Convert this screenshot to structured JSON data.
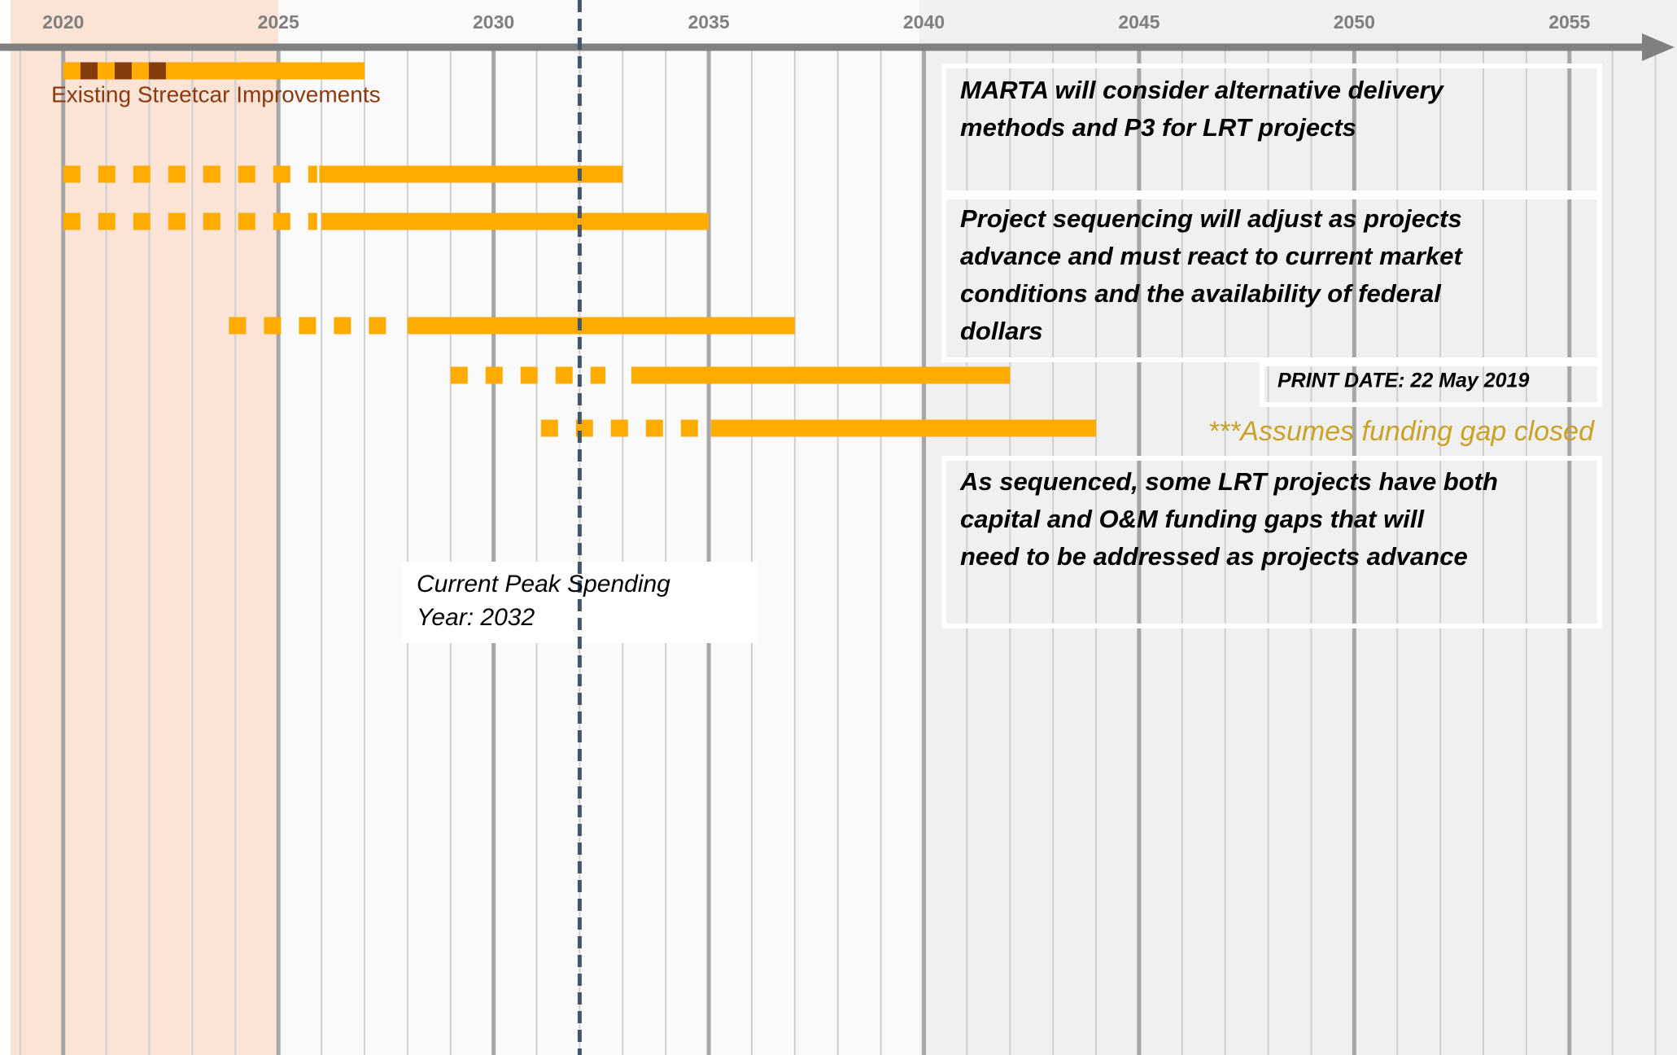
{
  "chart_data": {
    "type": "gantt",
    "xlim": [
      2018.53,
      2057.5
    ],
    "xticks": [
      2020,
      2025,
      2030,
      2035,
      2040,
      2045,
      2050,
      2055
    ],
    "grid": true,
    "build_color": "#ffab00",
    "plan_color": "#ffab00",
    "tasks": [
      {
        "name": "Existing Streetcar Improvements",
        "plan": [
          2020.4,
          2022.5
        ],
        "plan_color": "#843c0c",
        "build": [
          2020,
          2027
        ]
      },
      {
        "plan": [
          2020,
          2025.9
        ],
        "build": [
          2025.95,
          2033
        ]
      },
      {
        "plan": [
          2020,
          2025.9
        ],
        "build": [
          2026,
          2035
        ]
      },
      {
        "plan": [
          2023.85,
          2027.5
        ],
        "build": [
          2028,
          2037
        ]
      },
      {
        "plan": [
          2029,
          2032.6
        ],
        "build": [
          2033.2,
          2042
        ]
      },
      {
        "plan": [
          2031.1,
          2034.8
        ],
        "build": [
          2035.05,
          2044
        ]
      }
    ],
    "peak_year": 2032,
    "peak_label": [
      "Current Peak Spending",
      "Year: 2032"
    ],
    "notes": [
      [
        "MARTA will consider alternative delivery",
        "methods and P3 for LRT projects"
      ],
      [
        "Project sequencing will adjust as projects",
        "advance and must react to current market",
        "conditions and the availability of federal",
        "dollars"
      ],
      [
        "As sequenced, some LRT projects have both",
        "capital and O&M funding gaps that will",
        "need to be addressed as projects advance"
      ]
    ],
    "print_date": "PRINT DATE: 22 May 2019",
    "footnote": "***Assumes funding gap closed"
  }
}
